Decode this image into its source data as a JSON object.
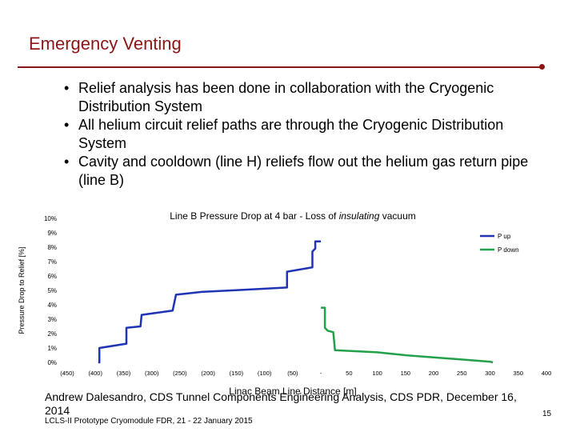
{
  "slide": {
    "title": "Emergency Venting",
    "bullets": [
      "Relief analysis has been done in collaboration with the Cryogenic Distribution System",
      "All helium circuit relief paths are through the Cryogenic Distribution System",
      "Cavity and cooldown (line H) reliefs flow out the helium gas return pipe (line B)"
    ],
    "bullet_glyph": "•",
    "footer": {
      "credit": "Andrew Dalesandro, CDS Tunnel Components Engineering Analysis, CDS PDR, December 16, 2014",
      "event": "LCLS-II Prototype Cryomodule FDR, 21 - 22 January 2015",
      "page_number": "15"
    },
    "colors": {
      "title": "#8c1515",
      "rule": "#8c1515"
    }
  },
  "chart_data": {
    "type": "line",
    "title_prefix": "Line B Pressure Drop at 4 bar - Loss of ",
    "title_italic": "insulating",
    "title_suffix": " vacuum",
    "xlabel": "Linac Beam Line Distance [m]",
    "ylabel": "Pressure Drop to Relief [%]",
    "ylim": [
      0,
      10
    ],
    "xlim": [
      -450,
      400
    ],
    "y_tick_labels": [
      "0%",
      "1%",
      "2%",
      "3%",
      "4%",
      "5%",
      "6%",
      "7%",
      "8%",
      "9%",
      "10%"
    ],
    "x_ticks": [
      {
        "x": -450,
        "label": "(450)"
      },
      {
        "x": -400,
        "label": "(400)"
      },
      {
        "x": -350,
        "label": "(350)"
      },
      {
        "x": -300,
        "label": "(300)"
      },
      {
        "x": -250,
        "label": "(250)"
      },
      {
        "x": -200,
        "label": "(200)"
      },
      {
        "x": -150,
        "label": "(150)"
      },
      {
        "x": -100,
        "label": "(100)"
      },
      {
        "x": -50,
        "label": "(50)"
      },
      {
        "x": 0,
        "label": "-"
      },
      {
        "x": 50,
        "label": "50"
      },
      {
        "x": 100,
        "label": "100"
      },
      {
        "x": 150,
        "label": "150"
      },
      {
        "x": 200,
        "label": "200"
      },
      {
        "x": 250,
        "label": "250"
      },
      {
        "x": 300,
        "label": "300"
      },
      {
        "x": 350,
        "label": "350"
      },
      {
        "x": 400,
        "label": "400"
      }
    ],
    "series": [
      {
        "name": "P up",
        "color": "#1f34b4",
        "points": [
          [
            -395,
            0.0
          ],
          [
            -393,
            0.0
          ],
          [
            -393,
            1.0
          ],
          [
            -345,
            1.3
          ],
          [
            -345,
            2.4
          ],
          [
            -320,
            2.5
          ],
          [
            -318,
            3.3
          ],
          [
            -263,
            3.6
          ],
          [
            -257,
            4.7
          ],
          [
            -210,
            4.9
          ],
          [
            -158,
            5.0
          ],
          [
            -110,
            5.1
          ],
          [
            -60,
            5.2
          ],
          [
            -60,
            6.3
          ],
          [
            -15,
            6.6
          ],
          [
            -15,
            7.7
          ],
          [
            -10,
            7.9
          ],
          [
            -10,
            8.4
          ],
          [
            0,
            8.4
          ]
        ]
      },
      {
        "name": "P down",
        "color": "#22a14a",
        "points": [
          [
            0,
            3.8
          ],
          [
            7,
            3.8
          ],
          [
            7,
            2.4
          ],
          [
            12,
            2.2
          ],
          [
            12,
            2.2
          ],
          [
            22,
            2.1
          ],
          [
            25,
            0.85
          ],
          [
            100,
            0.7
          ],
          [
            150,
            0.5
          ],
          [
            200,
            0.35
          ],
          [
            250,
            0.2
          ],
          [
            300,
            0.05
          ],
          [
            305,
            0.0
          ]
        ]
      }
    ],
    "legend_placement": "top-right",
    "grid": false
  }
}
